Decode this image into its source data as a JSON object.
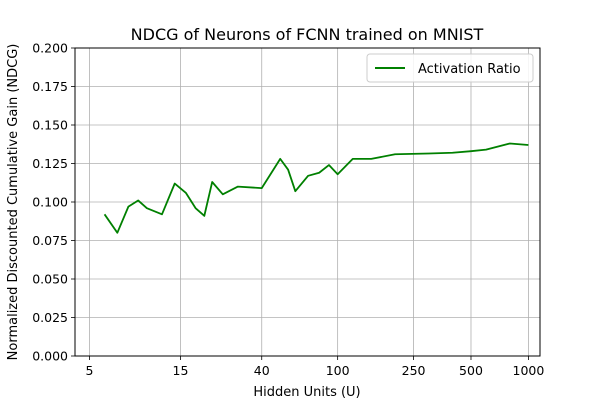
{
  "chart_data": {
    "type": "line",
    "title": "NDCG of Neurons of FCNN trained on MNIST",
    "xlabel": "Hidden Units (U)",
    "ylabel": "Normalized Discounted Cumulative Gain (NDCG)",
    "xscale": "log",
    "xlim": [
      4.2,
      1150
    ],
    "ylim": [
      0,
      0.2
    ],
    "xticks": [
      5,
      15,
      40,
      100,
      250,
      500,
      1000
    ],
    "xtick_labels": [
      "5",
      "15",
      "40",
      "100",
      "250",
      "500",
      "1000"
    ],
    "yticks": [
      0.0,
      0.025,
      0.05,
      0.075,
      0.1,
      0.125,
      0.15,
      0.175,
      0.2
    ],
    "ytick_labels": [
      "0.000",
      "0.025",
      "0.050",
      "0.075",
      "0.100",
      "0.125",
      "0.150",
      "0.175",
      "0.200"
    ],
    "grid": true,
    "legend_position": "top-right",
    "series": [
      {
        "name": "Activation Ratio",
        "color": "#008000",
        "x": [
          6,
          7,
          8,
          9,
          10,
          12,
          14,
          16,
          18,
          20,
          22,
          25,
          30,
          40,
          50,
          55,
          60,
          70,
          80,
          90,
          100,
          120,
          150,
          200,
          300,
          400,
          500,
          600,
          800,
          1000
        ],
        "y": [
          0.092,
          0.08,
          0.097,
          0.101,
          0.096,
          0.092,
          0.112,
          0.106,
          0.096,
          0.091,
          0.113,
          0.105,
          0.11,
          0.109,
          0.128,
          0.121,
          0.107,
          0.117,
          0.119,
          0.124,
          0.118,
          0.128,
          0.128,
          0.131,
          0.1315,
          0.132,
          0.133,
          0.134,
          0.138,
          0.137
        ]
      }
    ]
  }
}
